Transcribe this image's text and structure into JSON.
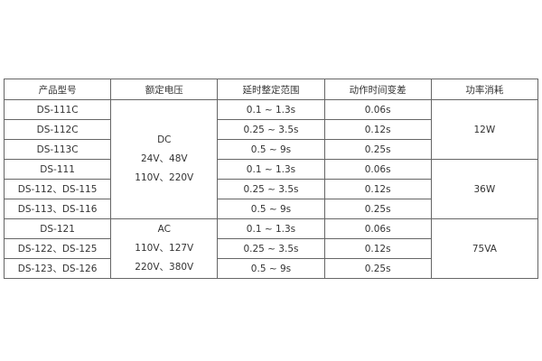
{
  "headers": [
    "产品型号",
    "额定电压",
    "延时整定范围",
    "动作时间变差",
    "功率消耗"
  ],
  "rows": [
    {
      "model": "DS-111C",
      "range": "0.1 ~ 1.3s",
      "variance": "0.06s"
    },
    {
      "model": "DS-112C",
      "range": "0.25 ~ 3.5s",
      "variance": "0.12s"
    },
    {
      "model": "DS-113C",
      "range": "0.5 ~ 9s",
      "variance": "0.25s"
    },
    {
      "model": "DS-111",
      "range": "0.1 ~ 1.3s",
      "variance": "0.06s"
    },
    {
      "model": "DS-112、DS-115",
      "range": "0.25 ~ 3.5s",
      "variance": "0.12s"
    },
    {
      "model": "DS-113、DS-116",
      "range": "0.5 ~ 9s",
      "variance": "0.25s"
    },
    {
      "model": "DS-121",
      "range": "0.1 ~ 1.3s",
      "variance": "0.06s"
    },
    {
      "model": "DS-122、DS-125",
      "range": "0.25 ~ 3.5s",
      "variance": "0.12s"
    },
    {
      "model": "DS-123、DS-126",
      "range": "0.5 ~ 9s",
      "variance": "0.25s"
    }
  ],
  "voltage": {
    "dc": [
      "DC",
      "24V、48V",
      "110V、220V"
    ],
    "ac": [
      "AC",
      "110V、127V",
      "220V、380V"
    ]
  },
  "power": [
    "12W",
    "36W",
    "75VA"
  ]
}
